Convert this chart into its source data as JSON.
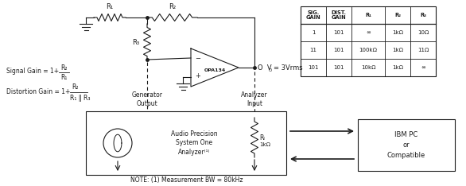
{
  "bg_color": "#ffffff",
  "text_color": "#1a1a1a",
  "line_color": "#1a1a1a",
  "table_headers": [
    "SIG.\nGAIN",
    "DIST.\nGAIN",
    "R₁",
    "R₂",
    "R₃"
  ],
  "table_rows": [
    [
      "1",
      "101",
      "∞",
      "1kΩ",
      "10Ω"
    ],
    [
      "11",
      "101",
      "100kΩ",
      "1kΩ",
      "11Ω"
    ],
    [
      "101",
      "101",
      "10kΩ",
      "1kΩ",
      "∞"
    ]
  ],
  "note": "NOTE: (1) Measurement BW = 80kHz"
}
